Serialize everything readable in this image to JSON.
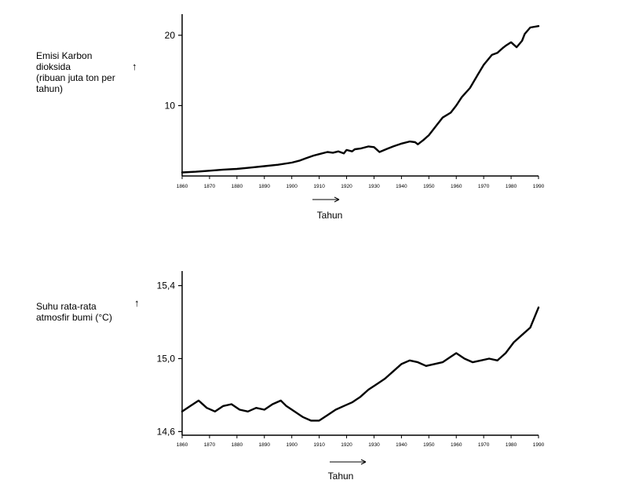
{
  "chart_data": [
    {
      "type": "line",
      "ylabel_lines": [
        "Emisi Karbon",
        "dioksida",
        "(ribuan juta ton per",
        "tahun)"
      ],
      "ylabel_arrow": "↑",
      "xlabel": "Tahun",
      "x_ticks": [
        "1860",
        "1870",
        "1880",
        "1890",
        "1900",
        "1910",
        "1920",
        "1930",
        "1940",
        "1950",
        "1960",
        "1970",
        "1980",
        "1990"
      ],
      "y_ticks": [
        "10",
        "20"
      ],
      "xlim": [
        1860,
        1990
      ],
      "ylim": [
        0,
        23
      ],
      "grid": false,
      "series": [
        {
          "x": [
            1860,
            1865,
            1870,
            1875,
            1880,
            1885,
            1890,
            1895,
            1900,
            1903,
            1905,
            1908,
            1910,
            1913,
            1915,
            1917,
            1919,
            1920,
            1922,
            1923,
            1925,
            1928,
            1930,
            1932,
            1935,
            1937,
            1940,
            1943,
            1945,
            1946,
            1948,
            1950,
            1953,
            1955,
            1958,
            1960,
            1962,
            1965,
            1968,
            1970,
            1973,
            1975,
            1977,
            1978,
            1980,
            1982,
            1984,
            1985,
            1987,
            1990
          ],
          "y": [
            0.5,
            0.6,
            0.75,
            0.9,
            1.0,
            1.2,
            1.4,
            1.6,
            1.9,
            2.2,
            2.5,
            2.9,
            3.1,
            3.4,
            3.3,
            3.5,
            3.2,
            3.7,
            3.5,
            3.8,
            3.9,
            4.2,
            4.1,
            3.4,
            3.9,
            4.2,
            4.6,
            4.9,
            4.8,
            4.5,
            5.1,
            5.8,
            7.3,
            8.3,
            9.0,
            10.0,
            11.2,
            12.5,
            14.5,
            15.8,
            17.2,
            17.5,
            18.2,
            18.5,
            19.0,
            18.3,
            19.2,
            20.2,
            21.1,
            21.3
          ]
        }
      ]
    },
    {
      "type": "line",
      "ylabel_lines": [
        "Suhu rata-rata",
        "atmosfir bumi (°C)"
      ],
      "ylabel_arrow": "↑",
      "xlabel": "Tahun",
      "x_ticks": [
        "1860",
        "1870",
        "1880",
        "1890",
        "1900",
        "1910",
        "1920",
        "1930",
        "1940",
        "1950",
        "1960",
        "1970",
        "1980",
        "1990"
      ],
      "y_ticks": [
        "14,6",
        "15,0",
        "15,4"
      ],
      "xlim": [
        1860,
        1990
      ],
      "ylim": [
        14.58,
        15.48
      ],
      "grid": false,
      "series": [
        {
          "x": [
            1860,
            1863,
            1866,
            1869,
            1872,
            1875,
            1878,
            1881,
            1884,
            1887,
            1890,
            1893,
            1896,
            1898,
            1901,
            1904,
            1907,
            1910,
            1913,
            1916,
            1919,
            1922,
            1925,
            1928,
            1931,
            1934,
            1937,
            1940,
            1943,
            1946,
            1949,
            1952,
            1955,
            1958,
            1960,
            1963,
            1966,
            1969,
            1972,
            1975,
            1978,
            1981,
            1984,
            1987,
            1990
          ],
          "y": [
            14.71,
            14.74,
            14.77,
            14.73,
            14.71,
            14.74,
            14.75,
            14.72,
            14.71,
            14.73,
            14.72,
            14.75,
            14.77,
            14.74,
            14.71,
            14.68,
            14.66,
            14.66,
            14.69,
            14.72,
            14.74,
            14.76,
            14.79,
            14.83,
            14.86,
            14.89,
            14.93,
            14.97,
            14.99,
            14.98,
            14.96,
            14.97,
            14.98,
            15.01,
            15.03,
            15.0,
            14.98,
            14.99,
            15.0,
            14.99,
            15.03,
            15.09,
            15.13,
            15.17,
            15.28
          ]
        }
      ]
    }
  ]
}
